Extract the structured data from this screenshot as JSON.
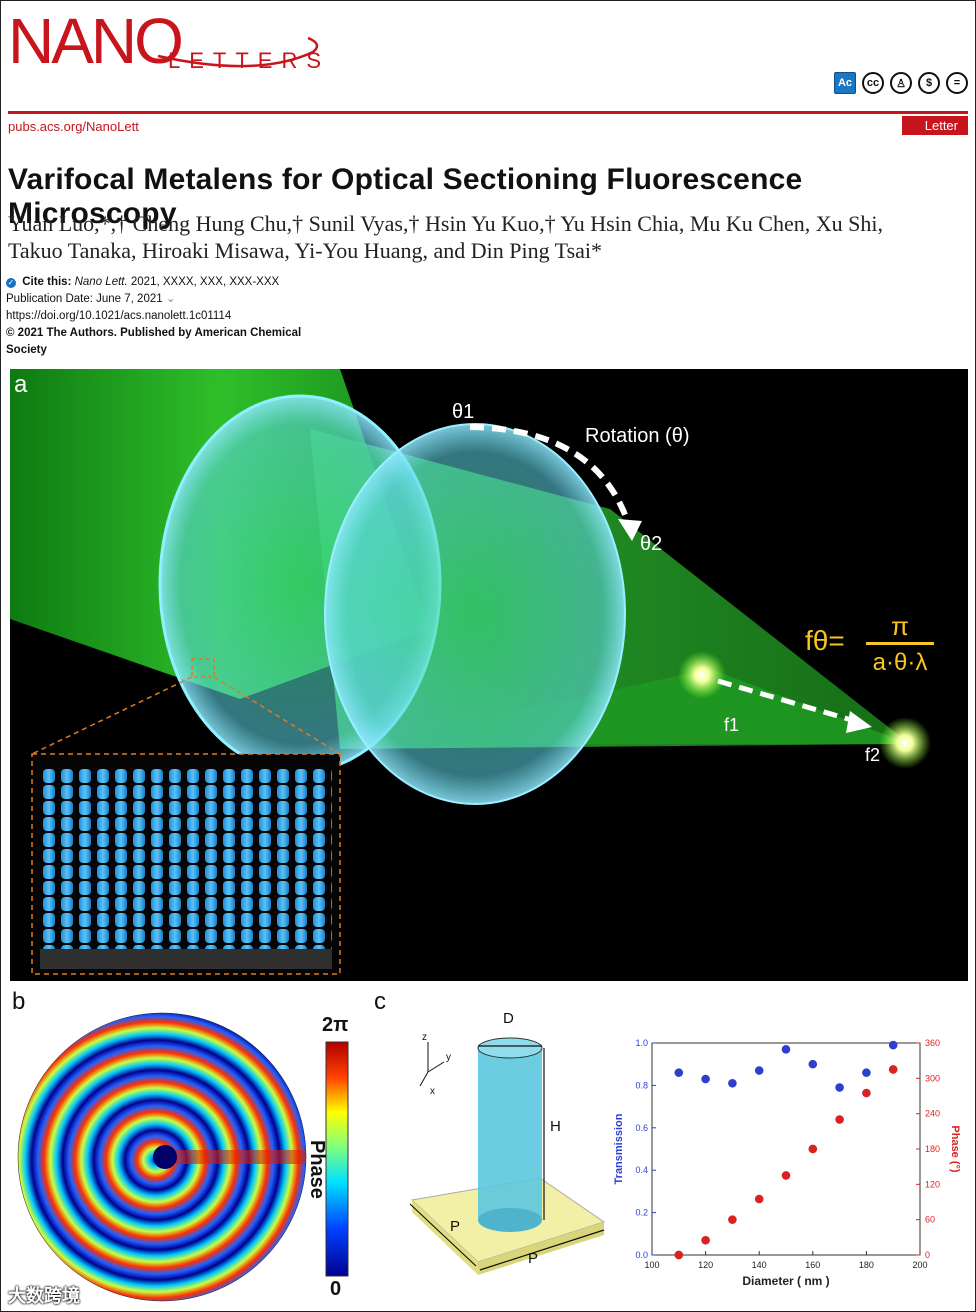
{
  "journal": {
    "logo_main": "NANO",
    "logo_sub": "LETTERS",
    "url": "pubs.acs.org/NanoLett",
    "article_type": "Letter",
    "license_icons": [
      "ac-open-access-icon",
      "cc-icon",
      "by-icon",
      "nc-icon",
      "nd-icon"
    ],
    "accent_color": "#c8151d"
  },
  "title": "Varifocal Metalens for Optical Sectioning Fluorescence Microscopy",
  "authors_line1": "Yuan Luo,*,† Cheng Hung Chu,† Sunil Vyas,† Hsin Yu Kuo,† Yu Hsin Chia, Mu Ku Chen, Xu Shi,",
  "authors_line2": "Takuo Tanaka, Hiroaki Misawa, Yi-You Huang, and Din Ping Tsai*",
  "citation": {
    "cite_label": "Cite this:",
    "journal_abbrev": "Nano Lett.",
    "cite_rest": "2021, XXXX, XXX, XXX-XXX",
    "publication_date": "Publication Date: June 7, 2021",
    "doi": "https://doi.org/10.1021/acs.nanolett.1c01114",
    "copyright_1": "© 2021 The Authors. Published by American Chemical",
    "copyright_2": "Society"
  },
  "figure_a": {
    "panel_label": "a",
    "theta1": "θ1",
    "rotation": "Rotation (θ)",
    "theta2": "θ2",
    "f1": "f1",
    "f2": "f2",
    "formula_lhs": "fθ=",
    "formula_num": "π",
    "formula_den": "a·θ·λ"
  },
  "figure_b": {
    "panel_label": "b",
    "colorbar_top": "2π",
    "colorbar_bottom": "0",
    "colorbar_label": "Phase"
  },
  "figure_c": {
    "panel_label": "c",
    "dim_D": "D",
    "dim_H": "H",
    "dim_P1": "P",
    "dim_P2": "P",
    "axis_z": "z",
    "axis_y": "y",
    "axis_x": "x"
  },
  "chart_data": {
    "type": "scatter",
    "xlabel": "Diameter ( nm )",
    "ylabel_left": "Transmission",
    "ylabel_right": "Phase (°)",
    "x_ticks": [
      100,
      120,
      140,
      160,
      180,
      200
    ],
    "ylim_left": [
      0.0,
      1.0
    ],
    "ylim_right": [
      0,
      360
    ],
    "y_ticks_left": [
      "0.0",
      "0.2",
      "0.4",
      "0.6",
      "0.8",
      "1.0"
    ],
    "y_ticks_right": [
      "0",
      "60",
      "120",
      "180",
      "240",
      "300",
      "360"
    ],
    "x": [
      110,
      120,
      130,
      140,
      150,
      160,
      170,
      180,
      190
    ],
    "series": [
      {
        "axis": "left",
        "color": "#2b3fd6",
        "values": [
          0.86,
          0.83,
          0.81,
          0.87,
          0.97,
          0.9,
          0.79,
          0.86,
          0.99
        ]
      },
      {
        "axis": "right",
        "color": "#e02020",
        "values": [
          0,
          25,
          60,
          95,
          135,
          180,
          230,
          275,
          315
        ]
      }
    ]
  },
  "watermark": "大数跨境"
}
